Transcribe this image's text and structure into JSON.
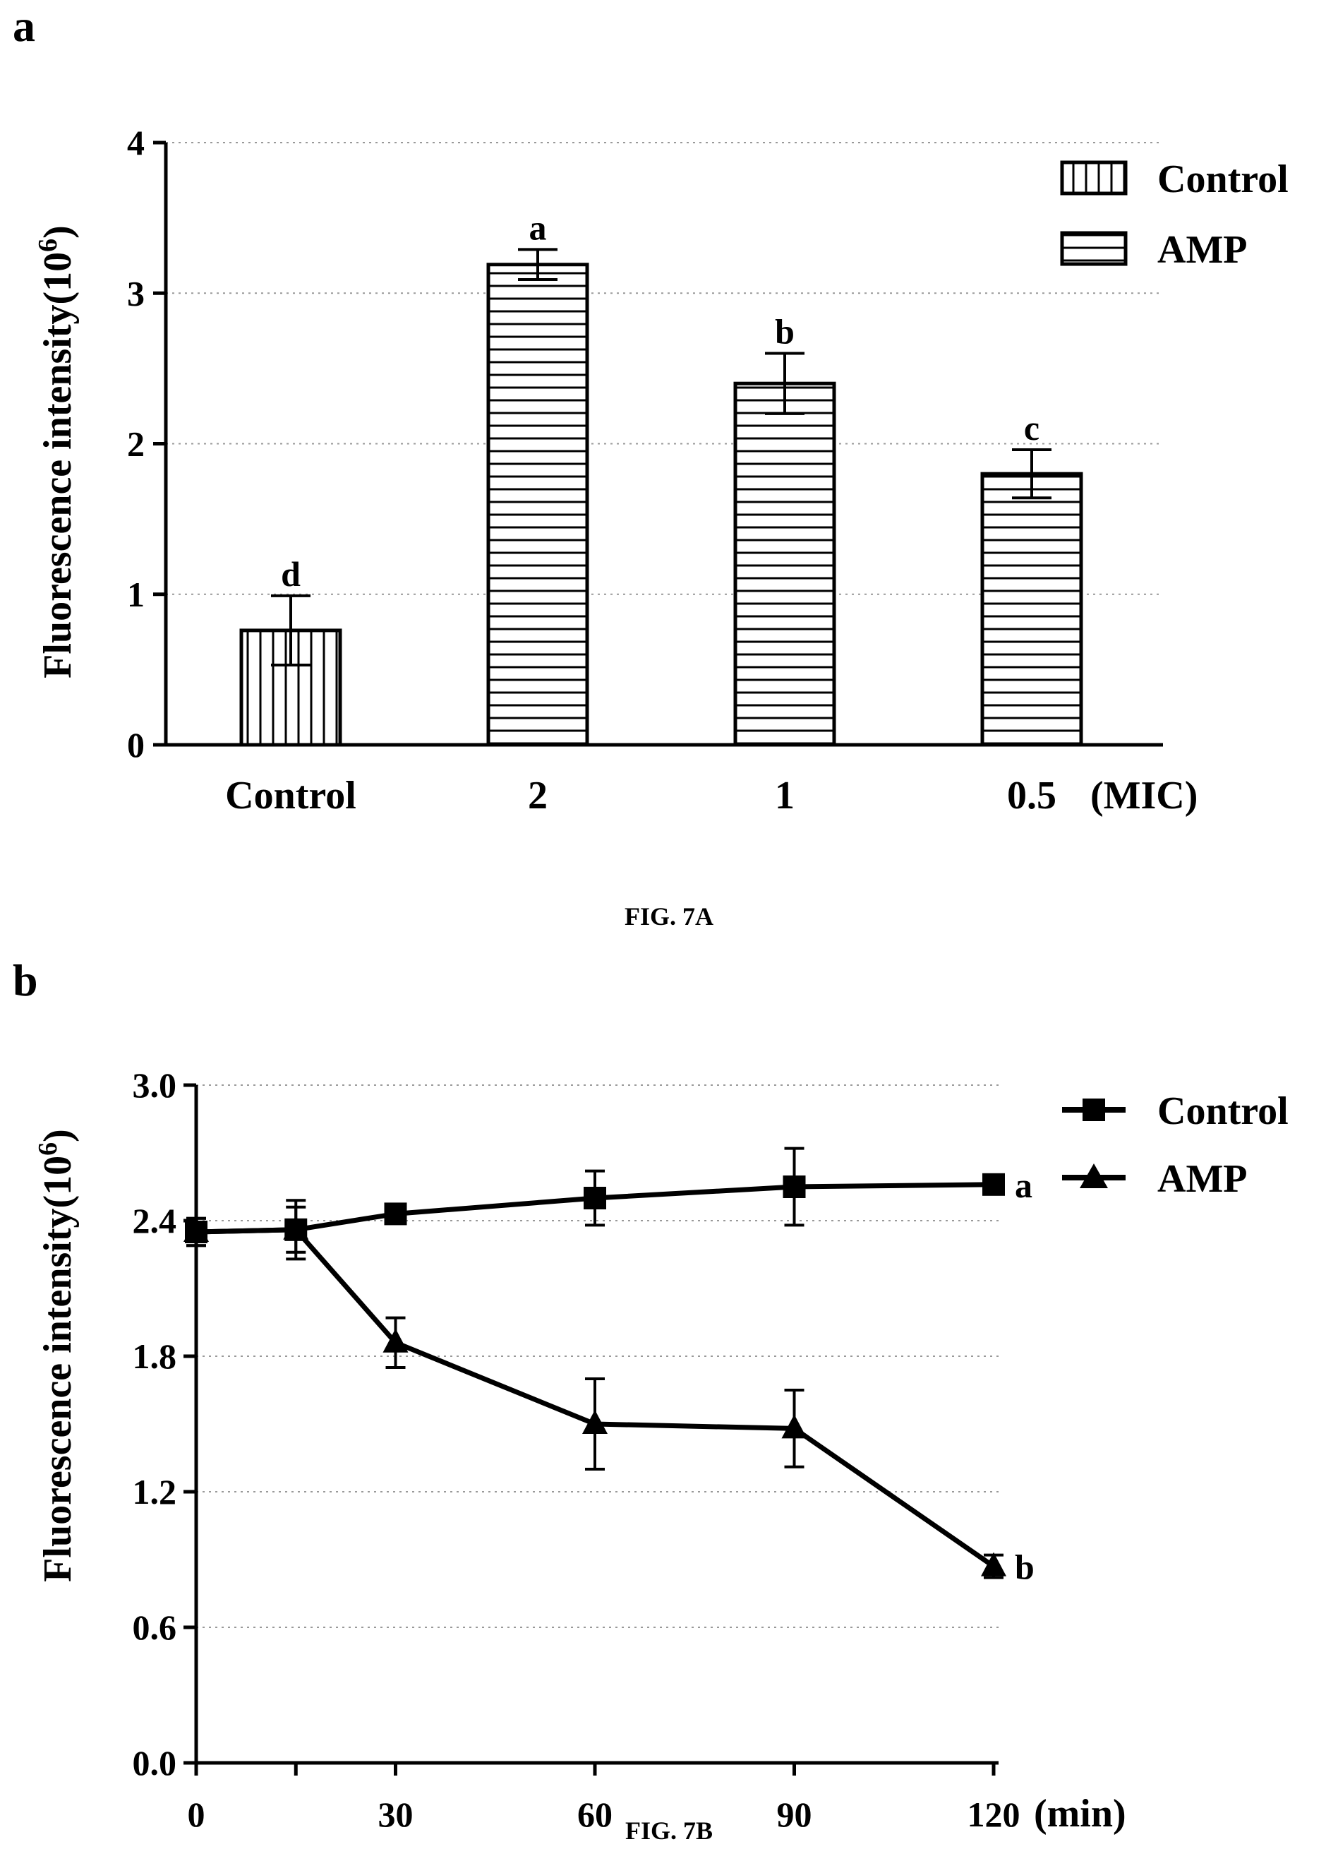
{
  "figure_a": {
    "panel_label": "a",
    "caption": "FIG. 7A",
    "ylabel": "Fluorescence intensity(10",
    "ylabel_sup": "6",
    "ylabel_close": ")",
    "unit_label": "(MIC)",
    "legend": [
      {
        "name": "Control",
        "pattern": "vertical-hatch"
      },
      {
        "name": "AMP",
        "pattern": "horizontal-hatch"
      }
    ]
  },
  "figure_b": {
    "panel_label": "b",
    "caption": "FIG. 7B",
    "ylabel": "Fluorescence intensity(10",
    "ylabel_sup": "6",
    "ylabel_close": ")",
    "unit_label": "(min)",
    "legend": [
      {
        "name": "Control",
        "marker": "square"
      },
      {
        "name": "AMP",
        "marker": "triangle"
      }
    ]
  },
  "chart_data": [
    {
      "type": "bar",
      "categories": [
        "Control",
        "2",
        "1",
        "0.5"
      ],
      "values": [
        0.76,
        3.19,
        2.4,
        1.8
      ],
      "errors": [
        0.23,
        0.1,
        0.2,
        0.16
      ],
      "significance": [
        "d",
        "a",
        "b",
        "c"
      ],
      "patterns": [
        "vertical-hatch",
        "horizontal-hatch",
        "horizontal-hatch",
        "horizontal-hatch"
      ],
      "ylim": [
        0,
        4
      ],
      "yticks": [
        "0",
        "1",
        "2",
        "3",
        "4"
      ],
      "grid": true,
      "legend_position": "top-right"
    },
    {
      "type": "line",
      "x": [
        0,
        15,
        30,
        60,
        90,
        120
      ],
      "xticks": [
        "0",
        "30",
        "60",
        "90",
        "120"
      ],
      "series": [
        {
          "name": "Control",
          "marker": "square",
          "values": [
            2.35,
            2.36,
            2.43,
            2.5,
            2.55,
            2.56
          ],
          "errors": [
            0.06,
            0.13,
            0.03,
            0.12,
            0.17,
            0.02
          ],
          "significance": "a"
        },
        {
          "name": "AMP",
          "marker": "triangle",
          "values": [
            2.35,
            2.36,
            1.86,
            1.5,
            1.48,
            0.87
          ],
          "errors": [
            0.06,
            0.1,
            0.11,
            0.2,
            0.17,
            0.05
          ],
          "significance": "b"
        }
      ],
      "ylim": [
        0,
        3.0
      ],
      "yticks": [
        "0.0",
        "0.6",
        "1.2",
        "1.8",
        "2.4",
        "3.0"
      ],
      "grid": true,
      "legend_position": "top-right"
    }
  ]
}
